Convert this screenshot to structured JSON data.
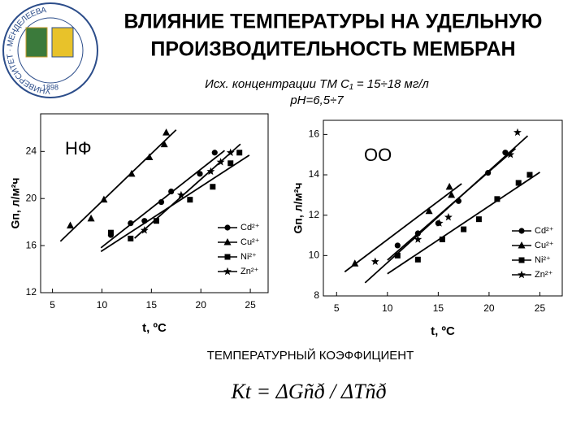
{
  "header": {
    "title_lines": [
      "ВЛИЯНИЕ ТЕМПЕРАТУРЫ НА УДЕЛЬНУЮ",
      "ПРОИЗВОДИТЕЛЬНОСТЬ МЕМБРАН"
    ],
    "subtitle_lines": [
      "Исх. концентрации ТМ C₁ = 15÷18 мг/л",
      "pH=6,5÷7"
    ]
  },
  "logo": {
    "ring_text": "УНИВЕРСИТЕТ · МЕНДЕЛЕЕВА",
    "year": "1898"
  },
  "chart_data": [
    {
      "type": "scatter",
      "title": "НФ",
      "x_label": "t, ºC",
      "y_label": "Gп, л/м²ч",
      "xlim": [
        3.8,
        26.8
      ],
      "ylim": [
        12,
        27.2
      ],
      "xticks": [
        5,
        10,
        15,
        20,
        25
      ],
      "yticks": [
        12,
        16,
        20,
        24
      ],
      "trend_lines": true,
      "series": [
        {
          "name": "Cd²⁺",
          "marker": "circle",
          "color": "#000000",
          "x": [
            10.9,
            12.9,
            14.3,
            16,
            17,
            19.9,
            21.4
          ],
          "values": [
            16.9,
            17.9,
            18.1,
            19.7,
            20.6,
            22.1,
            23.9
          ]
        },
        {
          "name": "Cu²⁺",
          "marker": "triangle",
          "color": "#000000",
          "x": [
            6.8,
            8.9,
            10.2,
            13,
            14.8,
            16.3,
            16.5
          ],
          "values": [
            17.7,
            18.3,
            19.9,
            22.1,
            23.5,
            24.6,
            25.6
          ]
        },
        {
          "name": "Ni²⁺",
          "marker": "square",
          "color": "#000000",
          "x": [
            10.9,
            12.9,
            15.5,
            18.9,
            21.2,
            23,
            23.9
          ],
          "values": [
            17.1,
            16.6,
            18.1,
            19.9,
            21,
            23,
            23.9
          ]
        },
        {
          "name": "Zn²⁺",
          "marker": "star",
          "color": "#000000",
          "x": [
            14.3,
            18,
            21,
            22,
            23
          ],
          "values": [
            17.3,
            20.3,
            22.3,
            23.1,
            23.9
          ]
        }
      ]
    },
    {
      "type": "scatter",
      "title": "ОО",
      "x_label": "t, ºC",
      "y_label": "Gп, л/м²ч",
      "xlim": [
        3.7,
        27.2
      ],
      "ylim": [
        8,
        16.7
      ],
      "xticks": [
        5,
        10,
        15,
        20,
        25
      ],
      "yticks": [
        8,
        10,
        12,
        14,
        16
      ],
      "trend_lines": true,
      "series": [
        {
          "name": "Cd²⁺",
          "marker": "circle",
          "color": "#000000",
          "x": [
            11,
            13,
            15,
            17,
            19.9,
            21.6
          ],
          "values": [
            10.5,
            11.1,
            11.6,
            12.7,
            14.1,
            15.1
          ]
        },
        {
          "name": "Cu²⁺",
          "marker": "triangle",
          "color": "#000000",
          "x": [
            6.8,
            14.1,
            16.1,
            16.3
          ],
          "values": [
            9.6,
            12.2,
            13.4,
            13
          ]
        },
        {
          "name": "Ni²⁺",
          "marker": "square",
          "color": "#000000",
          "x": [
            11,
            13,
            15.4,
            17.5,
            19,
            20.8,
            22.9,
            24
          ],
          "values": [
            10,
            9.8,
            10.8,
            11.3,
            11.8,
            12.8,
            13.6,
            14
          ]
        },
        {
          "name": "Zn²⁺",
          "marker": "star",
          "color": "#000000",
          "x": [
            8.8,
            13,
            15.1,
            16,
            22.1,
            22.8
          ],
          "values": [
            9.7,
            10.8,
            11.6,
            11.9,
            15,
            16.1
          ]
        }
      ]
    }
  ],
  "footer": {
    "heading": "ТЕМПЕРАТУРНЫЙ КОЭФФИЦИЕНТ",
    "formula": "Kt = ΔGñð / ΔTñð"
  }
}
